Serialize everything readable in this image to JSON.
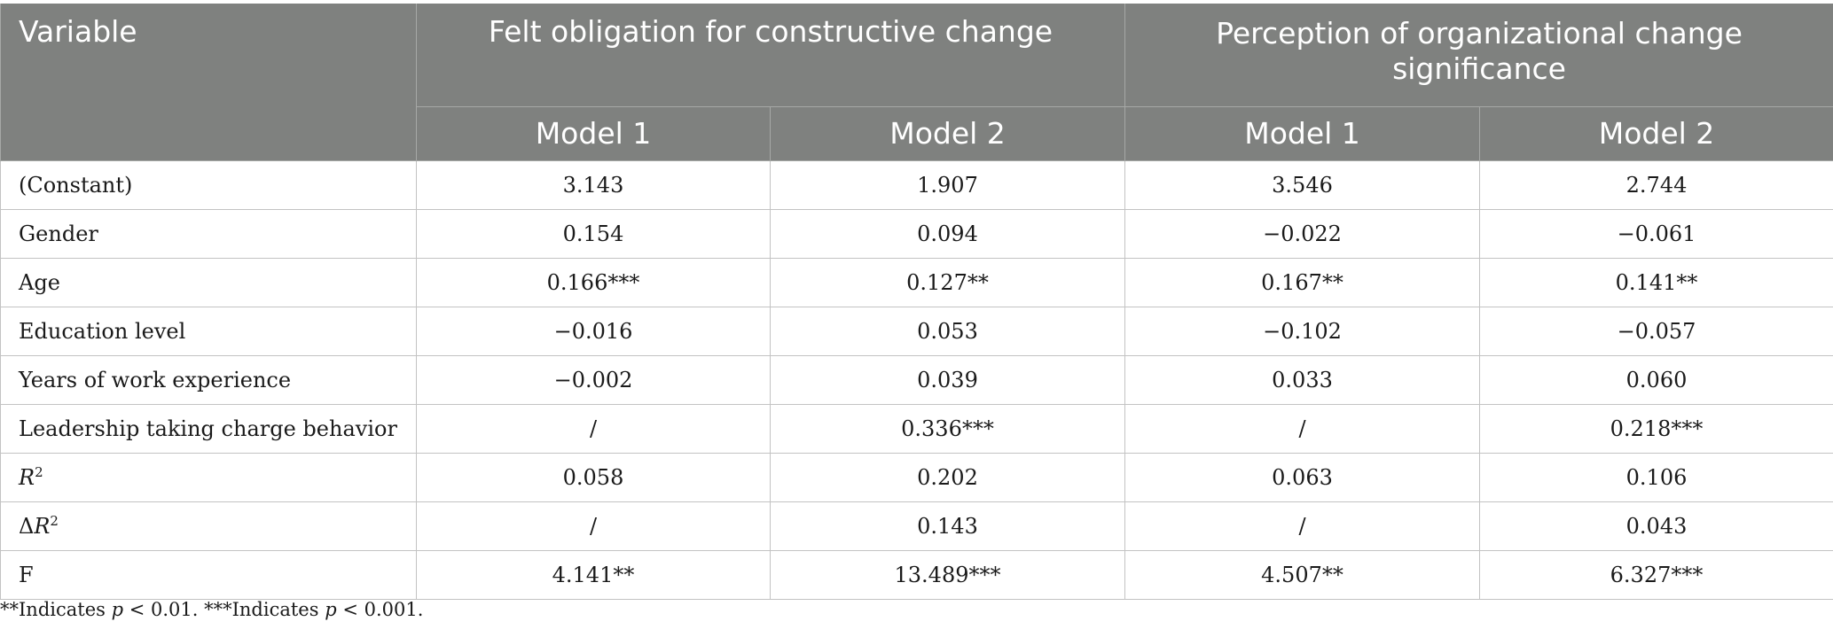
{
  "header": {
    "variable_label": "Variable",
    "group1_label": "Felt obligation for constructive change",
    "group2_label_line1": "Perception of organizational change",
    "group2_label_line2": "significance",
    "model_labels": [
      "Model 1",
      "Model 2",
      "Model 1",
      "Model 2"
    ]
  },
  "rows": [
    {
      "label": "(Constant)",
      "values": [
        "3.143",
        "1.907",
        "3.546",
        "2.744"
      ]
    },
    {
      "label": "Gender",
      "values": [
        "0.154",
        "0.094",
        "−0.022",
        "−0.061"
      ]
    },
    {
      "label": "Age",
      "values": [
        "0.166***",
        "0.127**",
        "0.167**",
        "0.141**"
      ]
    },
    {
      "label": "Education level",
      "values": [
        "−0.016",
        "0.053",
        "−0.102",
        "−0.057"
      ]
    },
    {
      "label": "Years of work experience",
      "values": [
        "−0.002",
        "0.039",
        "0.033",
        "0.060"
      ]
    },
    {
      "label": "Leadership taking charge behavior",
      "values": [
        "/",
        "0.336***",
        "/",
        "0.218***"
      ]
    },
    {
      "label_prefix": "",
      "label_italic": "R",
      "label_sup": "2",
      "values": [
        "0.058",
        "0.202",
        "0.063",
        "0.106"
      ]
    },
    {
      "label_prefix": "Δ",
      "label_italic": "R",
      "label_sup": "2",
      "values": [
        "/",
        "0.143",
        "/",
        "0.043"
      ]
    },
    {
      "label": "F",
      "values": [
        "4.141**",
        "13.489***",
        "4.507**",
        "6.327***"
      ]
    }
  ],
  "footnote": {
    "part1": "**Indicates ",
    "p1": "p",
    "part2": " < 0.01. ***Indicates ",
    "p2": "p",
    "part3": " < 0.001."
  }
}
